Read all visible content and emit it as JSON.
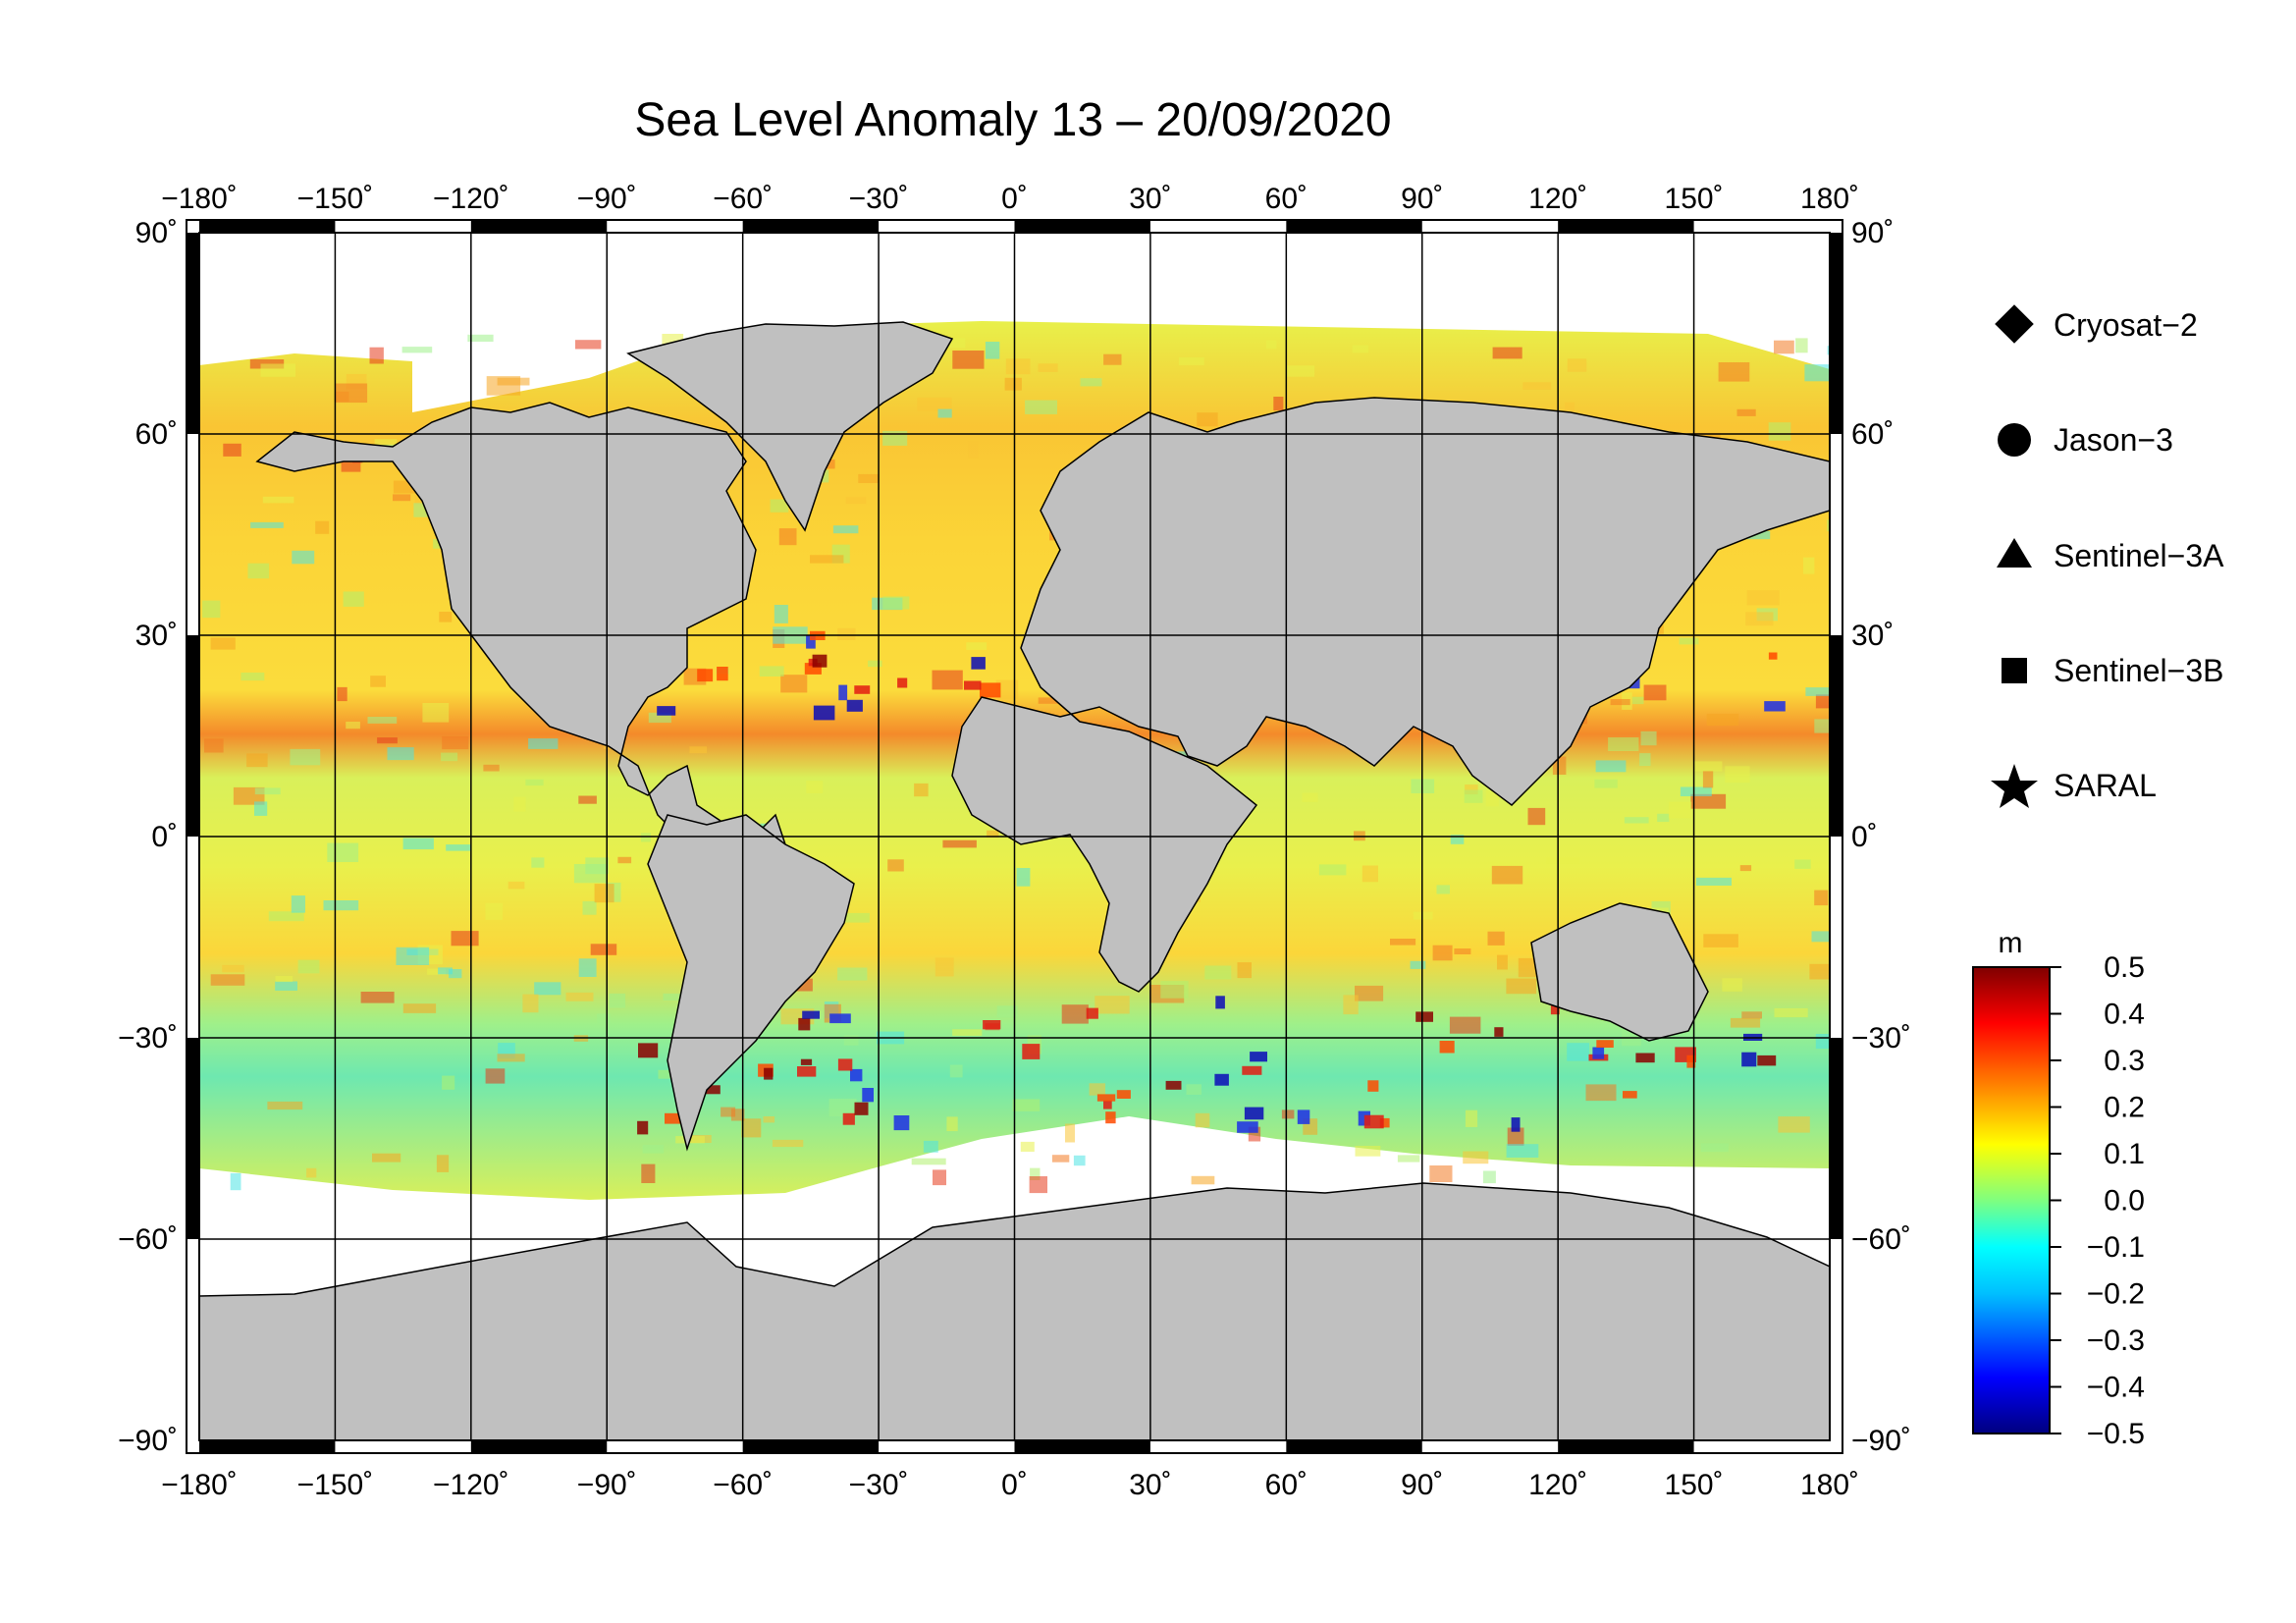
{
  "title": "Sea Level Anomaly 13 – 20/09/2020",
  "map": {
    "lon_ticks": [
      "−180˚",
      "−150˚",
      "−120˚",
      "−90˚",
      "−60˚",
      "−30˚",
      "0˚",
      "30˚",
      "60˚",
      "90˚",
      "120˚",
      "150˚",
      "180˚"
    ],
    "lat_ticks_left": [
      "90˚",
      "60˚",
      "30˚",
      "0˚",
      "−30˚",
      "−60˚",
      "−90˚"
    ],
    "lat_ticks_right": [
      "90˚",
      "60˚",
      "30˚",
      "0˚",
      "−30˚",
      "−60˚",
      "−90˚"
    ],
    "lon_values": [
      -180,
      -150,
      -120,
      -90,
      -60,
      -30,
      0,
      30,
      60,
      90,
      120,
      150,
      180
    ],
    "lat_values": [
      90,
      60,
      30,
      0,
      -30,
      -60,
      -90
    ],
    "colors": {
      "land": "#c0c0c0",
      "ice": "#ffffff",
      "grid": "#000000"
    }
  },
  "legend": {
    "items": [
      {
        "label": "Cryosat−2",
        "icon": "diamond-icon"
      },
      {
        "label": "Jason−3",
        "icon": "circle-icon"
      },
      {
        "label": "Sentinel−3A",
        "icon": "triangle-icon"
      },
      {
        "label": "Sentinel−3B",
        "icon": "square-icon"
      },
      {
        "label": "SARAL",
        "icon": "star-icon"
      }
    ]
  },
  "colorbar": {
    "unit": "m",
    "ticks": [
      "0.5",
      "0.4",
      "0.3",
      "0.2",
      "0.1",
      "0.0",
      "−0.1",
      "−0.2",
      "−0.3",
      "−0.4",
      "−0.5"
    ],
    "values": [
      0.5,
      0.4,
      0.3,
      0.2,
      0.1,
      0.0,
      -0.1,
      -0.2,
      -0.3,
      -0.4,
      -0.5
    ],
    "colors": [
      "#00007f",
      "#0000ff",
      "#00bfff",
      "#00ffff",
      "#7fff7f",
      "#ffff00",
      "#ff7f00",
      "#ff0000",
      "#7f0000"
    ]
  }
}
